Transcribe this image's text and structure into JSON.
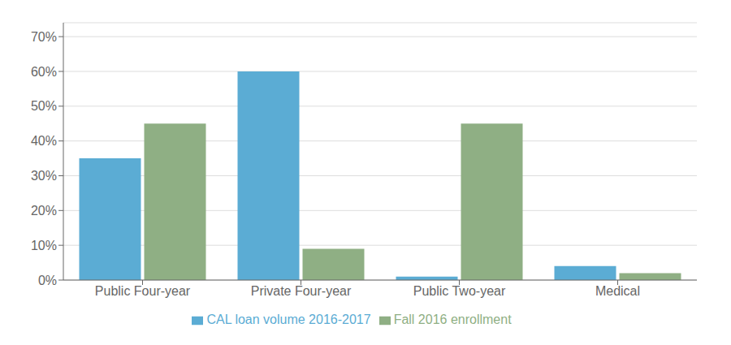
{
  "chart_data": {
    "type": "bar",
    "categories": [
      "Public Four-year",
      "Private Four-year",
      "Public Two-year",
      "Medical"
    ],
    "series": [
      {
        "name": "CAL loan volume 2016-2017",
        "color": "#5BACD4",
        "values": [
          0.35,
          0.6,
          0.01,
          0.04
        ]
      },
      {
        "name": "Fall 2016 enrollment",
        "color": "#8FAF84",
        "values": [
          0.45,
          0.09,
          0.45,
          0.02
        ]
      }
    ],
    "ylim": [
      0,
      0.74
    ],
    "yticks": [
      {
        "value": 0.0,
        "label": "0%"
      },
      {
        "value": 0.1,
        "label": "10%"
      },
      {
        "value": 0.2,
        "label": "20%"
      },
      {
        "value": 0.3,
        "label": "30%"
      },
      {
        "value": 0.4,
        "label": "40%"
      },
      {
        "value": 0.5,
        "label": "50%"
      },
      {
        "value": 0.6,
        "label": "60%"
      },
      {
        "value": 0.7,
        "label": "70%"
      }
    ],
    "grid": true,
    "legend": "bottom"
  }
}
